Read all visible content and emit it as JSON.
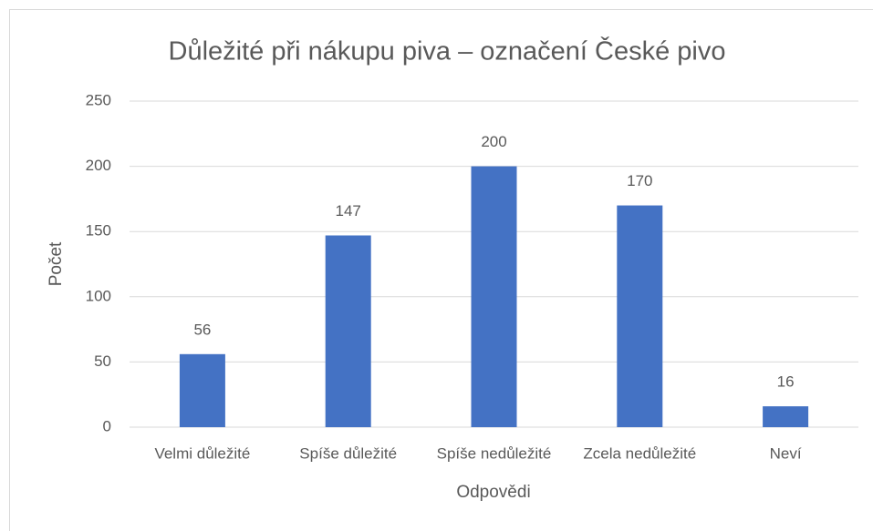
{
  "chart_data": {
    "type": "bar",
    "title": "Důležité při nákupu piva – označení České pivo",
    "x_label": "Odpovědi",
    "y_label": "Počet",
    "categories": [
      "Velmi důležité",
      "Spíše důležité",
      "Spíše nedůležité",
      "Zcela nedůležité",
      "Neví"
    ],
    "values": [
      56,
      147,
      200,
      170,
      16
    ],
    "color": "#4472c4",
    "ylim": [
      0,
      250
    ],
    "yticks": [
      0,
      50,
      100,
      150,
      200,
      250
    ],
    "grid": true
  }
}
